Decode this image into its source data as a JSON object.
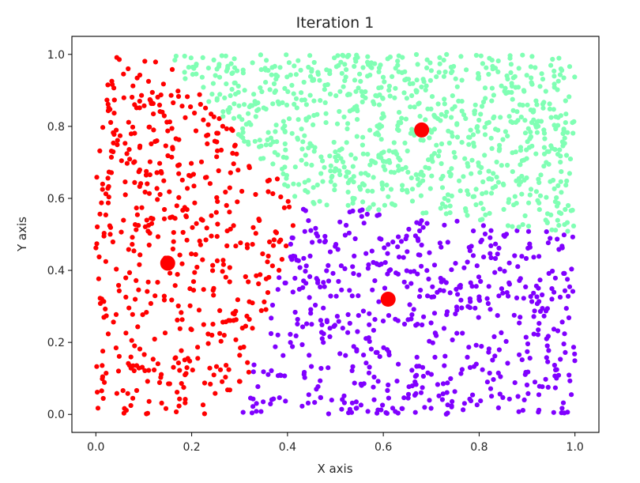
{
  "chart_data": {
    "type": "scatter",
    "title": "Iteration 1",
    "xlabel": "X axis",
    "ylabel": "Y axis",
    "xlim": [
      -0.05,
      1.05
    ],
    "ylim": [
      -0.05,
      1.05
    ],
    "x_ticks": [
      "0.0",
      "0.2",
      "0.4",
      "0.6",
      "0.8",
      "1.0"
    ],
    "y_ticks": [
      "0.0",
      "0.2",
      "0.4",
      "0.6",
      "0.8",
      "1.0"
    ],
    "grid": false,
    "legend": "none",
    "clusters": [
      {
        "color": "#ff0000",
        "point_count": 500
      },
      {
        "color": "#8000ff",
        "point_count": 600
      },
      {
        "color": "#80ffb4",
        "point_count": 900
      }
    ],
    "centroids": [
      {
        "x": 0.15,
        "y": 0.42,
        "color": "#ff0000"
      },
      {
        "x": 0.61,
        "y": 0.32,
        "color": "#ff0000"
      },
      {
        "x": 0.68,
        "y": 0.79,
        "color": "#ff0000"
      }
    ]
  }
}
